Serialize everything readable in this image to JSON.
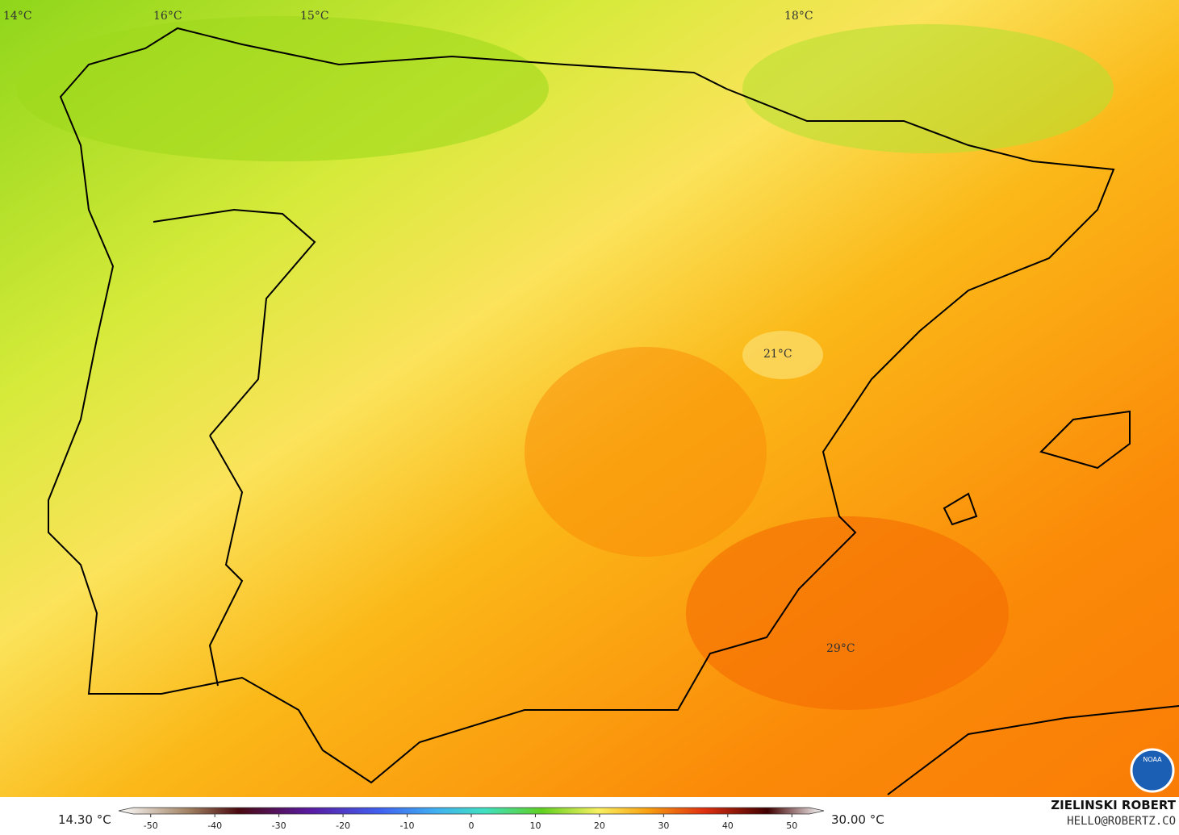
{
  "map": {
    "labels": [
      "14°C",
      "16°C",
      "15°C",
      "18°C",
      "21°C",
      "29°C"
    ],
    "colorbar": {
      "min_label": "14.30 °C",
      "max_label": "30.00 °C",
      "range": [
        -55,
        55
      ],
      "ticks": [
        -50,
        -40,
        -30,
        -20,
        -10,
        0,
        10,
        20,
        30,
        40,
        50
      ]
    },
    "credit": {
      "name": "ZIELINSKI ROBERT",
      "contact": "HELLO@ROBERTZ.CO",
      "logo": "NOAA"
    }
  }
}
